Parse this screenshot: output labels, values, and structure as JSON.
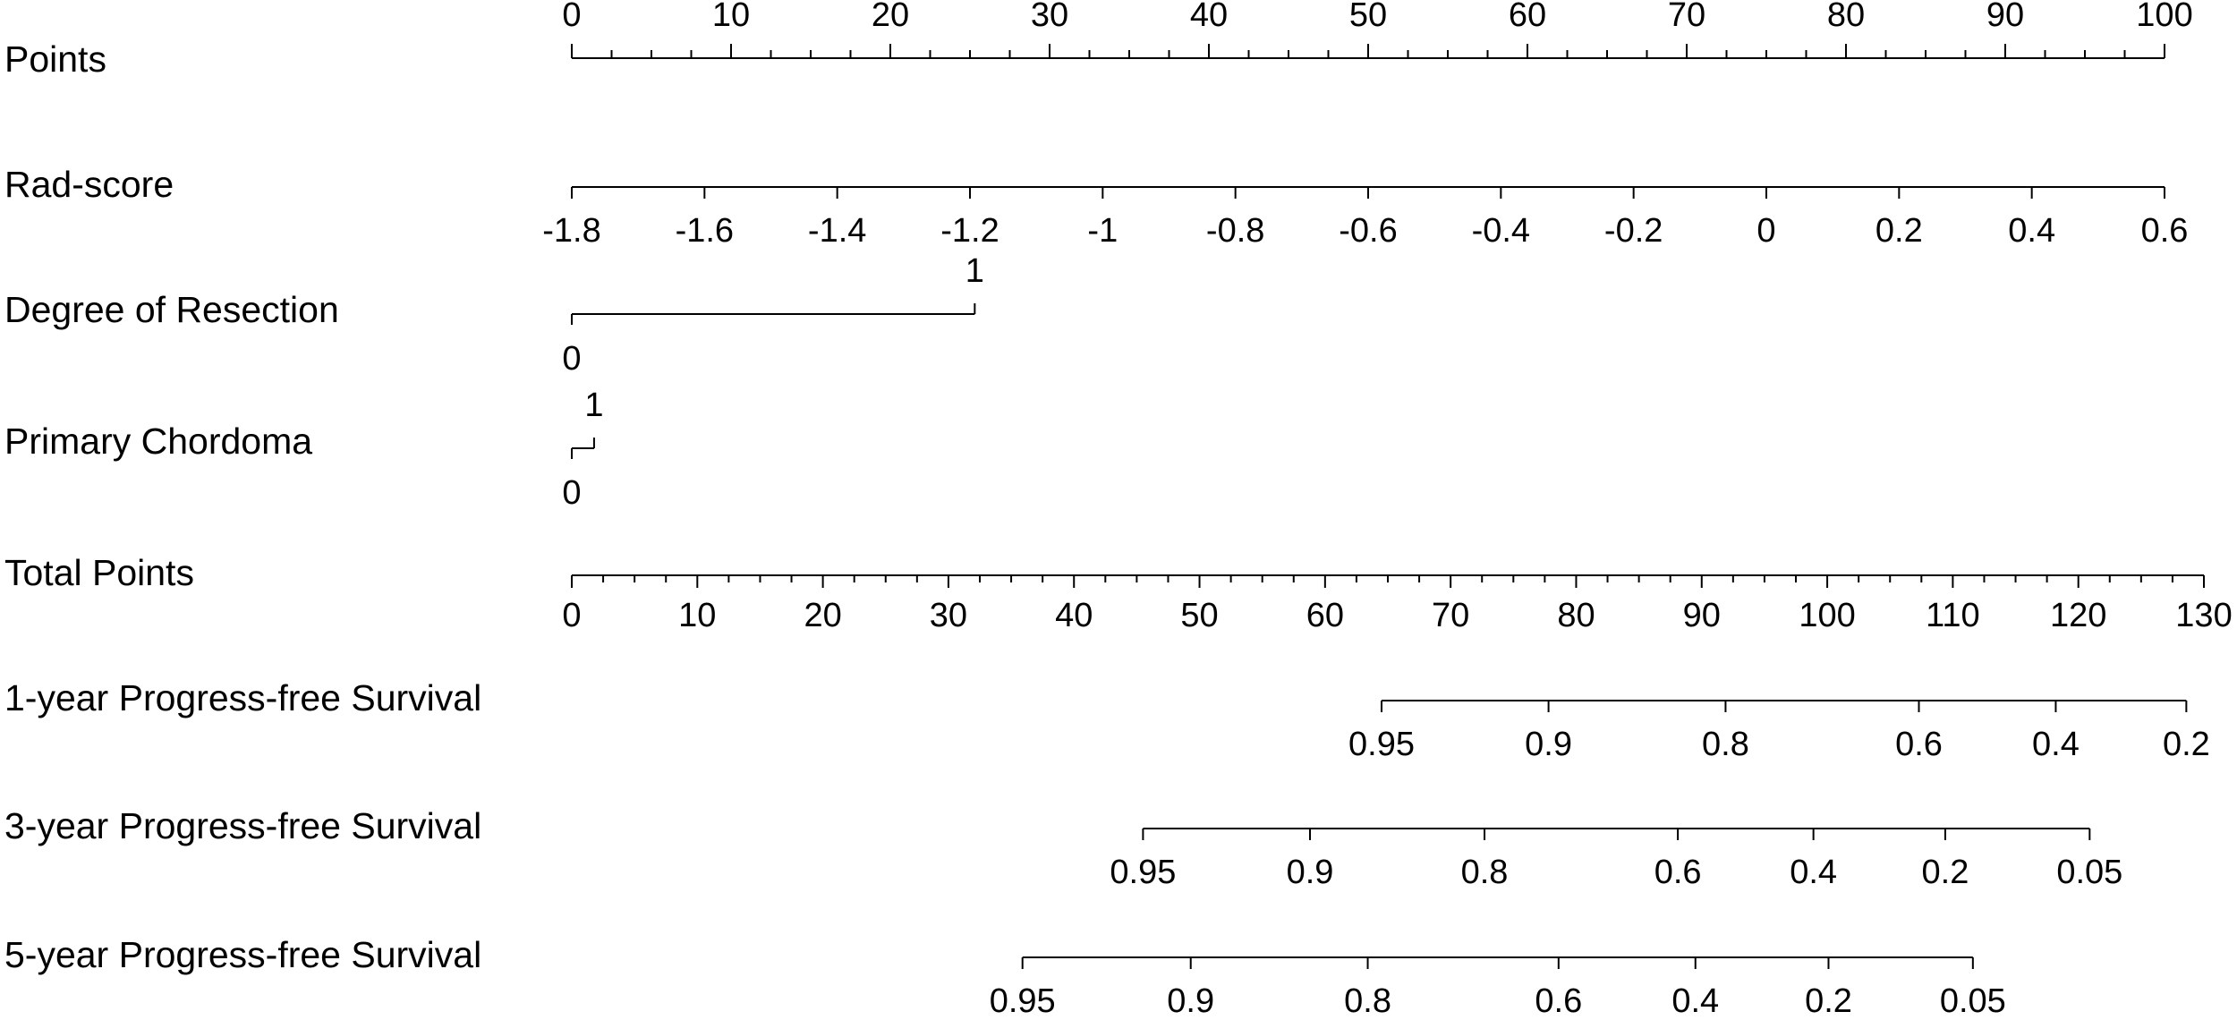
{
  "chart_data": {
    "type": "nomogram",
    "points_axis": {
      "label": "Points",
      "lim": [
        0,
        100
      ],
      "ticks": [
        0,
        10,
        20,
        30,
        40,
        50,
        60,
        70,
        80,
        90,
        100
      ],
      "minor_ticks": [
        2.5,
        5,
        7.5,
        12.5,
        15,
        17.5,
        22.5,
        25,
        27.5,
        32.5,
        35,
        37.5,
        42.5,
        45,
        47.5,
        52.5,
        55,
        57.5,
        62.5,
        65,
        67.5,
        72.5,
        75,
        77.5,
        82.5,
        85,
        87.5,
        92.5,
        95,
        97.5
      ]
    },
    "rad_score": {
      "label": "Rad-score",
      "lim": [
        -1.8,
        0.6
      ],
      "points_at_lim": [
        0,
        100
      ],
      "ticks": [
        -1.8,
        -1.6,
        -1.4,
        -1.2,
        -1,
        -0.8,
        -0.6,
        -0.4,
        -0.2,
        0,
        0.2,
        0.4,
        0.6
      ]
    },
    "factors": [
      {
        "label": "Degree of Resection",
        "levels": [
          {
            "level": 0,
            "points": 0
          },
          {
            "level": 1,
            "points": 25.3
          }
        ]
      },
      {
        "label": "Primary Chordoma",
        "levels": [
          {
            "level": 0,
            "points": 0
          },
          {
            "level": 1,
            "points": 1.4
          }
        ]
      }
    ],
    "total_points_axis": {
      "label": "Total Points",
      "lim": [
        0,
        130
      ],
      "ticks": [
        0,
        10,
        20,
        30,
        40,
        50,
        60,
        70,
        80,
        90,
        100,
        110,
        120,
        130
      ],
      "minor_ticks": [
        2.5,
        5,
        7.5,
        12.5,
        15,
        17.5,
        22.5,
        25,
        27.5,
        32.5,
        35,
        37.5,
        42.5,
        45,
        47.5,
        52.5,
        55,
        57.5,
        62.5,
        65,
        67.5,
        72.5,
        75,
        77.5,
        82.5,
        85,
        87.5,
        92.5,
        95,
        97.5,
        102.5,
        105,
        107.5,
        112.5,
        115,
        117.5,
        122.5,
        125,
        127.5
      ]
    },
    "survival": [
      {
        "label": "1-year Progress-free Survival",
        "ticks": [
          {
            "survival": 0.95,
            "total_points": 64.5
          },
          {
            "survival": 0.9,
            "total_points": 77.8
          },
          {
            "survival": 0.8,
            "total_points": 91.9
          },
          {
            "survival": 0.6,
            "total_points": 107.3
          },
          {
            "survival": 0.4,
            "total_points": 118.2
          },
          {
            "survival": 0.2,
            "total_points": 128.6
          }
        ]
      },
      {
        "label": "3-year Progress-free Survival",
        "ticks": [
          {
            "survival": 0.95,
            "total_points": 45.5
          },
          {
            "survival": 0.9,
            "total_points": 58.8
          },
          {
            "survival": 0.8,
            "total_points": 72.7
          },
          {
            "survival": 0.6,
            "total_points": 88.1
          },
          {
            "survival": 0.4,
            "total_points": 98.9
          },
          {
            "survival": 0.2,
            "total_points": 109.4
          },
          {
            "survival": 0.05,
            "total_points": 120.9
          }
        ]
      },
      {
        "label": "5-year Progress-free Survival",
        "ticks": [
          {
            "survival": 0.95,
            "total_points": 35.9
          },
          {
            "survival": 0.9,
            "total_points": 49.3
          },
          {
            "survival": 0.8,
            "total_points": 63.4
          },
          {
            "survival": 0.6,
            "total_points": 78.6
          },
          {
            "survival": 0.4,
            "total_points": 89.5
          },
          {
            "survival": 0.2,
            "total_points": 100.1
          },
          {
            "survival": 0.05,
            "total_points": 111.6
          }
        ]
      }
    ]
  }
}
